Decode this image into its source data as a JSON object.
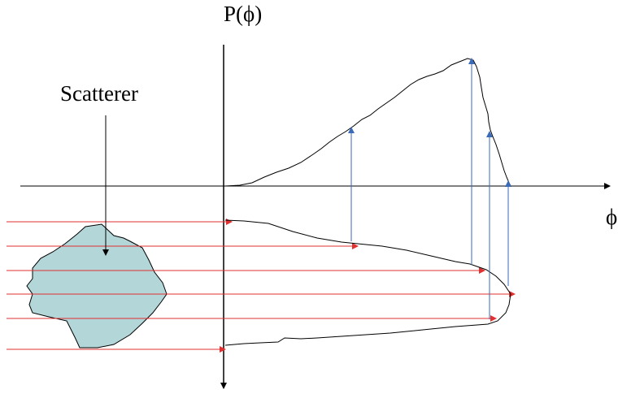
{
  "figure": {
    "y_axis_label": "P(ϕ)",
    "x_axis_label": "ϕ",
    "object_label": "Scatterer"
  },
  "colors": {
    "axis": "#000000",
    "incident_rays": "#e03030",
    "projection_arrows": "#3a6ab8",
    "scatterer_fill": "#b3d6d8",
    "outline": "#000000"
  }
}
